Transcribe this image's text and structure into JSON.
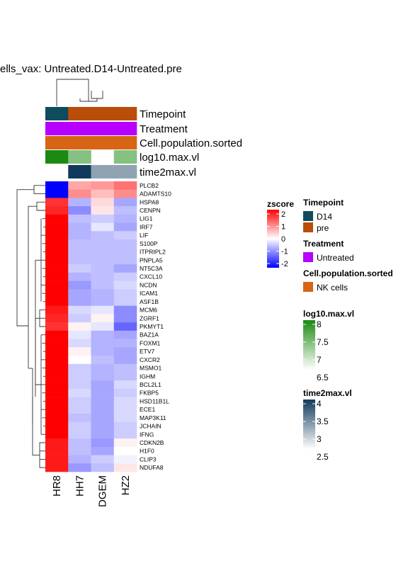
{
  "chart_data": {
    "type": "heatmap",
    "title": "ells_vax: Untreated.D14-Untreated.pre",
    "columns": [
      "HR8",
      "HH7",
      "DGEM",
      "HZ2"
    ],
    "rows": [
      "PLCB2",
      "ADAMTS10",
      "HSPA8",
      "CENPN",
      "LIG1",
      "IRF7",
      "LIF",
      "S100P",
      "ITPRIPL2",
      "PNPLA5",
      "NT5C3A",
      "CXCL10",
      "NCDN",
      "ICAM1",
      "ASF1B",
      "MCM6",
      "ZGRF1",
      "PKMYT1",
      "BAZ1A",
      "FOXM1",
      "ETV7",
      "CXCR2",
      "MSMO1",
      "IGHM",
      "BCL2L1",
      "FKBP5",
      "HSD11B1L",
      "ECE1",
      "MAP3K11",
      "JCHAIN",
      "IFNG",
      "CDKN2B",
      "H1F0",
      "CLIP3",
      "NDUFA8"
    ],
    "values": [
      [
        -2.0,
        0.7,
        0.8,
        1.1
      ],
      [
        -2.0,
        0.9,
        0.5,
        0.9
      ],
      [
        1.6,
        -0.6,
        0.3,
        -0.7
      ],
      [
        1.7,
        -0.9,
        0.2,
        -0.5
      ],
      [
        2.0,
        -0.5,
        -0.4,
        -0.6
      ],
      [
        2.0,
        -0.6,
        -0.2,
        -0.7
      ],
      [
        2.0,
        -0.6,
        -0.5,
        -0.4
      ],
      [
        2.0,
        -0.5,
        -0.5,
        -0.5
      ],
      [
        2.0,
        -0.5,
        -0.5,
        -0.5
      ],
      [
        2.0,
        -0.5,
        -0.5,
        -0.5
      ],
      [
        2.0,
        -0.4,
        -0.5,
        -0.7
      ],
      [
        2.0,
        -0.6,
        -0.5,
        -0.4
      ],
      [
        2.0,
        -0.8,
        -0.5,
        -0.3
      ],
      [
        2.0,
        -0.7,
        -0.6,
        -0.4
      ],
      [
        2.0,
        -0.7,
        -0.6,
        -0.4
      ],
      [
        1.8,
        -0.3,
        -0.2,
        -0.9
      ],
      [
        1.7,
        -0.4,
        0.1,
        -0.9
      ],
      [
        1.6,
        0.1,
        -0.2,
        -1.2
      ],
      [
        2.0,
        -0.2,
        -0.6,
        -0.7
      ],
      [
        2.0,
        -0.3,
        -0.6,
        -0.6
      ],
      [
        2.0,
        0.1,
        -0.6,
        -0.7
      ],
      [
        2.0,
        0.0,
        -0.5,
        -0.7
      ],
      [
        2.0,
        -0.4,
        -0.6,
        -0.5
      ],
      [
        2.0,
        -0.4,
        -0.6,
        -0.5
      ],
      [
        2.0,
        -0.4,
        -0.7,
        -0.3
      ],
      [
        2.0,
        -0.3,
        -0.7,
        -0.4
      ],
      [
        2.0,
        -0.4,
        -0.7,
        -0.3
      ],
      [
        2.0,
        -0.4,
        -0.7,
        -0.3
      ],
      [
        2.0,
        -0.5,
        -0.7,
        -0.3
      ],
      [
        2.0,
        -0.4,
        -0.7,
        -0.4
      ],
      [
        2.0,
        -0.4,
        -0.7,
        -0.4
      ],
      [
        1.8,
        -0.5,
        -0.8,
        0.1
      ],
      [
        1.8,
        -0.5,
        -0.7,
        0.0
      ],
      [
        1.8,
        -0.6,
        -0.4,
        -0.1
      ],
      [
        1.8,
        -0.8,
        -0.5,
        0.2
      ]
    ],
    "annotations": [
      {
        "name": "Timepoint",
        "values": [
          "D14",
          "pre",
          "pre",
          "pre"
        ]
      },
      {
        "name": "Treatment",
        "values": [
          "Untreated",
          "Untreated",
          "Untreated",
          "Untreated"
        ]
      },
      {
        "name": "Cell.population.sorted",
        "values": [
          "NK cells",
          "NK cells",
          "NK cells",
          "NK cells"
        ]
      },
      {
        "name": "log10.max.vl",
        "values": [
          8.0,
          7.3,
          null,
          7.3
        ]
      },
      {
        "name": "time2max.vl",
        "values": [
          null,
          4.0,
          3.2,
          3.2
        ]
      }
    ],
    "legend": {
      "zscore": {
        "title": "zscore",
        "ticks": [
          "2",
          "1",
          "0",
          "-1",
          "-2"
        ],
        "range": [
          -2,
          2
        ]
      },
      "Timepoint": {
        "title": "Timepoint",
        "items": [
          {
            "label": "D14",
            "color": "#0e4c5e"
          },
          {
            "label": "pre",
            "color": "#b84e08"
          }
        ]
      },
      "Treatment": {
        "title": "Treatment",
        "items": [
          {
            "label": "Untreated",
            "color": "#b800ff"
          }
        ]
      },
      "Cell.population.sorted": {
        "title": "Cell.population.sorted",
        "items": [
          {
            "label": "NK cells",
            "color": "#d86416"
          }
        ]
      },
      "log10.max.vl": {
        "title": "log10.max.vl",
        "ticks": [
          "8",
          "7.5",
          "7",
          "6.5"
        ],
        "range": [
          6.5,
          8
        ]
      },
      "time2max.vl": {
        "title": "time2max.vl",
        "ticks": [
          "4",
          "3.5",
          "3",
          "2.5"
        ],
        "range": [
          2.5,
          4
        ]
      }
    },
    "colors": {
      "low": "#0000ff",
      "mid": "#ffffff",
      "high": "#ff0000",
      "log10_high": "#1b8a12",
      "time2max_high": "#103a5c"
    }
  }
}
